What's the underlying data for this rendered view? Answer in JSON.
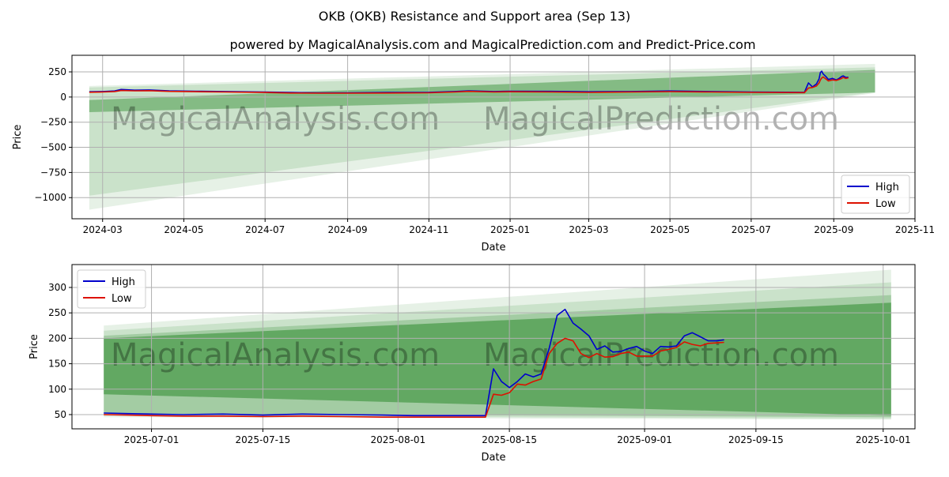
{
  "header": {
    "title": "OKB (OKB) Resistance and Support area (Sep 13)",
    "subtitle": "powered by MagicalAnalysis.com and MagicalPrediction.com and Predict-Price.com"
  },
  "watermarks": [
    "MagicalAnalysis.com",
    "MagicalPrediction.com"
  ],
  "colors": {
    "high": "#0000cc",
    "low": "#dd1100",
    "band": "#2e8b2e",
    "grid": "#b0b0b0"
  },
  "chart_data": [
    {
      "type": "line",
      "xlabel": "Date",
      "ylabel": "Price",
      "xlim": [
        "2024-02-07",
        "2025-11-01"
      ],
      "ylim": [
        -1210,
        415
      ],
      "x_ticks": [
        "2024-03",
        "2024-05",
        "2024-07",
        "2024-09",
        "2024-11",
        "2025-01",
        "2025-03",
        "2025-05",
        "2025-07",
        "2025-09",
        "2025-11"
      ],
      "x_tick_dates": [
        "2024-03-01",
        "2024-05-01",
        "2024-07-01",
        "2024-09-01",
        "2024-11-01",
        "2025-01-01",
        "2025-03-01",
        "2025-05-01",
        "2025-07-01",
        "2025-09-01",
        "2025-11-01"
      ],
      "y_ticks": [
        250,
        0,
        -250,
        -500,
        -750,
        -1000
      ],
      "y_tick_labels": [
        "250",
        "0",
        "−250",
        "−500",
        "−750",
        "−1000"
      ],
      "legend": {
        "position": "lower-right",
        "entries": [
          "High",
          "Low"
        ]
      },
      "bands": [
        {
          "start": "2024-02-20",
          "end": "2025-10-02",
          "upper": [
            110,
            330
          ],
          "lower": [
            -1120,
            40
          ],
          "opacity": 0.12
        },
        {
          "start": "2024-02-20",
          "end": "2025-10-02",
          "upper": [
            95,
            295
          ],
          "lower": [
            -980,
            50
          ],
          "opacity": 0.15
        },
        {
          "start": "2024-02-20",
          "end": "2025-10-02",
          "upper": [
            -30,
            270
          ],
          "lower": [
            -150,
            45
          ],
          "opacity": 0.45
        }
      ],
      "series": [
        {
          "name": "High",
          "points": [
            [
              "2024-02-20",
              52
            ],
            [
              "2024-03-01",
              55
            ],
            [
              "2024-03-10",
              60
            ],
            [
              "2024-03-15",
              75
            ],
            [
              "2024-03-25",
              68
            ],
            [
              "2024-04-05",
              70
            ],
            [
              "2024-04-20",
              62
            ],
            [
              "2024-05-10",
              58
            ],
            [
              "2024-06-01",
              55
            ],
            [
              "2024-07-01",
              50
            ],
            [
              "2024-07-20",
              45
            ],
            [
              "2024-08-10",
              42
            ],
            [
              "2024-09-01",
              42
            ],
            [
              "2024-10-01",
              45
            ],
            [
              "2024-11-01",
              47
            ],
            [
              "2024-11-20",
              55
            ],
            [
              "2024-12-01",
              62
            ],
            [
              "2024-12-20",
              55
            ],
            [
              "2025-01-01",
              58
            ],
            [
              "2025-02-01",
              56
            ],
            [
              "2025-03-01",
              52
            ],
            [
              "2025-04-01",
              55
            ],
            [
              "2025-05-01",
              60
            ],
            [
              "2025-06-01",
              55
            ],
            [
              "2025-07-01",
              50
            ],
            [
              "2025-08-10",
              47
            ],
            [
              "2025-08-13",
              140
            ],
            [
              "2025-08-16",
              100
            ],
            [
              "2025-08-19",
              130
            ],
            [
              "2025-08-21",
              180
            ],
            [
              "2025-08-22",
              245
            ],
            [
              "2025-08-23",
              257
            ],
            [
              "2025-08-24",
              230
            ],
            [
              "2025-08-26",
              205
            ],
            [
              "2025-08-28",
              175
            ],
            [
              "2025-08-31",
              185
            ],
            [
              "2025-09-03",
              170
            ],
            [
              "2025-09-05",
              185
            ],
            [
              "2025-09-07",
              205
            ],
            [
              "2025-09-08",
              210
            ],
            [
              "2025-09-10",
              195
            ],
            [
              "2025-09-12",
              197
            ]
          ]
        },
        {
          "name": "Low",
          "points": [
            [
              "2024-02-20",
              48
            ],
            [
              "2024-03-01",
              50
            ],
            [
              "2024-03-10",
              55
            ],
            [
              "2024-03-15",
              65
            ],
            [
              "2024-03-25",
              62
            ],
            [
              "2024-04-05",
              63
            ],
            [
              "2024-04-20",
              56
            ],
            [
              "2024-05-10",
              53
            ],
            [
              "2024-06-01",
              50
            ],
            [
              "2024-07-01",
              45
            ],
            [
              "2024-07-20",
              40
            ],
            [
              "2024-08-10",
              38
            ],
            [
              "2024-09-01",
              38
            ],
            [
              "2024-10-01",
              40
            ],
            [
              "2024-11-01",
              42
            ],
            [
              "2024-11-20",
              50
            ],
            [
              "2024-12-01",
              56
            ],
            [
              "2024-12-20",
              50
            ],
            [
              "2025-01-01",
              52
            ],
            [
              "2025-02-01",
              50
            ],
            [
              "2025-03-01",
              46
            ],
            [
              "2025-04-01",
              50
            ],
            [
              "2025-05-01",
              54
            ],
            [
              "2025-06-01",
              50
            ],
            [
              "2025-07-01",
              46
            ],
            [
              "2025-08-10",
              44
            ],
            [
              "2025-08-13",
              90
            ],
            [
              "2025-08-16",
              95
            ],
            [
              "2025-08-19",
              110
            ],
            [
              "2025-08-21",
              140
            ],
            [
              "2025-08-22",
              170
            ],
            [
              "2025-08-23",
              190
            ],
            [
              "2025-08-24",
              200
            ],
            [
              "2025-08-26",
              180
            ],
            [
              "2025-08-28",
              160
            ],
            [
              "2025-08-31",
              170
            ],
            [
              "2025-09-03",
              165
            ],
            [
              "2025-09-05",
              175
            ],
            [
              "2025-09-07",
              185
            ],
            [
              "2025-09-08",
              195
            ],
            [
              "2025-09-10",
              185
            ],
            [
              "2025-09-12",
              191
            ]
          ]
        }
      ]
    },
    {
      "type": "line",
      "xlabel": "Date",
      "ylabel": "Price",
      "xlim": [
        "2025-06-21",
        "2025-10-05"
      ],
      "ylim": [
        22,
        345
      ],
      "x_ticks": [
        "2025-07-01",
        "2025-07-15",
        "2025-08-01",
        "2025-08-15",
        "2025-09-01",
        "2025-09-15",
        "2025-10-01"
      ],
      "x_tick_dates": [
        "2025-07-01",
        "2025-07-15",
        "2025-08-01",
        "2025-08-15",
        "2025-09-01",
        "2025-09-15",
        "2025-10-01"
      ],
      "y_ticks": [
        300,
        250,
        200,
        150,
        100,
        50
      ],
      "y_tick_labels": [
        "300",
        "250",
        "200",
        "150",
        "100",
        "50"
      ],
      "legend": {
        "position": "upper-left",
        "entries": [
          "High",
          "Low"
        ]
      },
      "bands": [
        {
          "start": "2025-06-25",
          "end": "2025-10-02",
          "upper": [
            225,
            335
          ],
          "lower": [
            45,
            40
          ],
          "opacity": 0.12
        },
        {
          "start": "2025-06-25",
          "end": "2025-10-02",
          "upper": [
            215,
            310
          ],
          "lower": [
            48,
            42
          ],
          "opacity": 0.15
        },
        {
          "start": "2025-06-25",
          "end": "2025-10-02",
          "upper": [
            205,
            285
          ],
          "lower": [
            52,
            45
          ],
          "opacity": 0.25
        },
        {
          "start": "2025-06-25",
          "end": "2025-10-02",
          "upper": [
            200,
            270
          ],
          "lower": [
            90,
            48
          ],
          "opacity": 0.55
        }
      ],
      "series": [
        {
          "name": "High",
          "points": [
            [
              "2025-06-25",
              53
            ],
            [
              "2025-06-28",
              52
            ],
            [
              "2025-07-01",
              51
            ],
            [
              "2025-07-05",
              50
            ],
            [
              "2025-07-10",
              51
            ],
            [
              "2025-07-15",
              49
            ],
            [
              "2025-07-20",
              51
            ],
            [
              "2025-07-25",
              50
            ],
            [
              "2025-07-30",
              49
            ],
            [
              "2025-08-03",
              48
            ],
            [
              "2025-08-08",
              48
            ],
            [
              "2025-08-12",
              48
            ],
            [
              "2025-08-13",
              140
            ],
            [
              "2025-08-14",
              115
            ],
            [
              "2025-08-15",
              103
            ],
            [
              "2025-08-16",
              115
            ],
            [
              "2025-08-17",
              130
            ],
            [
              "2025-08-18",
              124
            ],
            [
              "2025-08-19",
              130
            ],
            [
              "2025-08-20",
              180
            ],
            [
              "2025-08-21",
              245
            ],
            [
              "2025-08-22",
              257
            ],
            [
              "2025-08-23",
              230
            ],
            [
              "2025-08-24",
              218
            ],
            [
              "2025-08-25",
              205
            ],
            [
              "2025-08-26",
              178
            ],
            [
              "2025-08-27",
              185
            ],
            [
              "2025-08-28",
              173
            ],
            [
              "2025-08-29",
              174
            ],
            [
              "2025-08-30",
              180
            ],
            [
              "2025-08-31",
              184
            ],
            [
              "2025-09-01",
              175
            ],
            [
              "2025-09-02",
              170
            ],
            [
              "2025-09-03",
              184
            ],
            [
              "2025-09-04",
              183
            ],
            [
              "2025-09-05",
              185
            ],
            [
              "2025-09-06",
              205
            ],
            [
              "2025-09-07",
              211
            ],
            [
              "2025-09-08",
              203
            ],
            [
              "2025-09-09",
              195
            ],
            [
              "2025-09-10",
              195
            ],
            [
              "2025-09-11",
              197
            ]
          ]
        },
        {
          "name": "Low",
          "points": [
            [
              "2025-06-25",
              50
            ],
            [
              "2025-06-28",
              49
            ],
            [
              "2025-07-01",
              48
            ],
            [
              "2025-07-05",
              47
            ],
            [
              "2025-07-10",
              47
            ],
            [
              "2025-07-15",
              46
            ],
            [
              "2025-07-20",
              47
            ],
            [
              "2025-07-25",
              46
            ],
            [
              "2025-07-30",
              45
            ],
            [
              "2025-08-03",
              45
            ],
            [
              "2025-08-08",
              45
            ],
            [
              "2025-08-12",
              45
            ],
            [
              "2025-08-13",
              90
            ],
            [
              "2025-08-14",
              88
            ],
            [
              "2025-08-15",
              93
            ],
            [
              "2025-08-16",
              110
            ],
            [
              "2025-08-17",
              108
            ],
            [
              "2025-08-18",
              115
            ],
            [
              "2025-08-19",
              120
            ],
            [
              "2025-08-20",
              170
            ],
            [
              "2025-08-21",
              190
            ],
            [
              "2025-08-22",
              200
            ],
            [
              "2025-08-23",
              195
            ],
            [
              "2025-08-24",
              170
            ],
            [
              "2025-08-25",
              162
            ],
            [
              "2025-08-26",
              170
            ],
            [
              "2025-08-27",
              163
            ],
            [
              "2025-08-28",
              164
            ],
            [
              "2025-08-29",
              170
            ],
            [
              "2025-08-30",
              173
            ],
            [
              "2025-08-31",
              165
            ],
            [
              "2025-09-01",
              165
            ],
            [
              "2025-09-02",
              165
            ],
            [
              "2025-09-03",
              175
            ],
            [
              "2025-09-04",
              178
            ],
            [
              "2025-09-05",
              182
            ],
            [
              "2025-09-06",
              193
            ],
            [
              "2025-09-07",
              188
            ],
            [
              "2025-09-08",
              185
            ],
            [
              "2025-09-09",
              190
            ],
            [
              "2025-09-10",
              191
            ],
            [
              "2025-09-11",
              192
            ]
          ]
        }
      ]
    }
  ]
}
